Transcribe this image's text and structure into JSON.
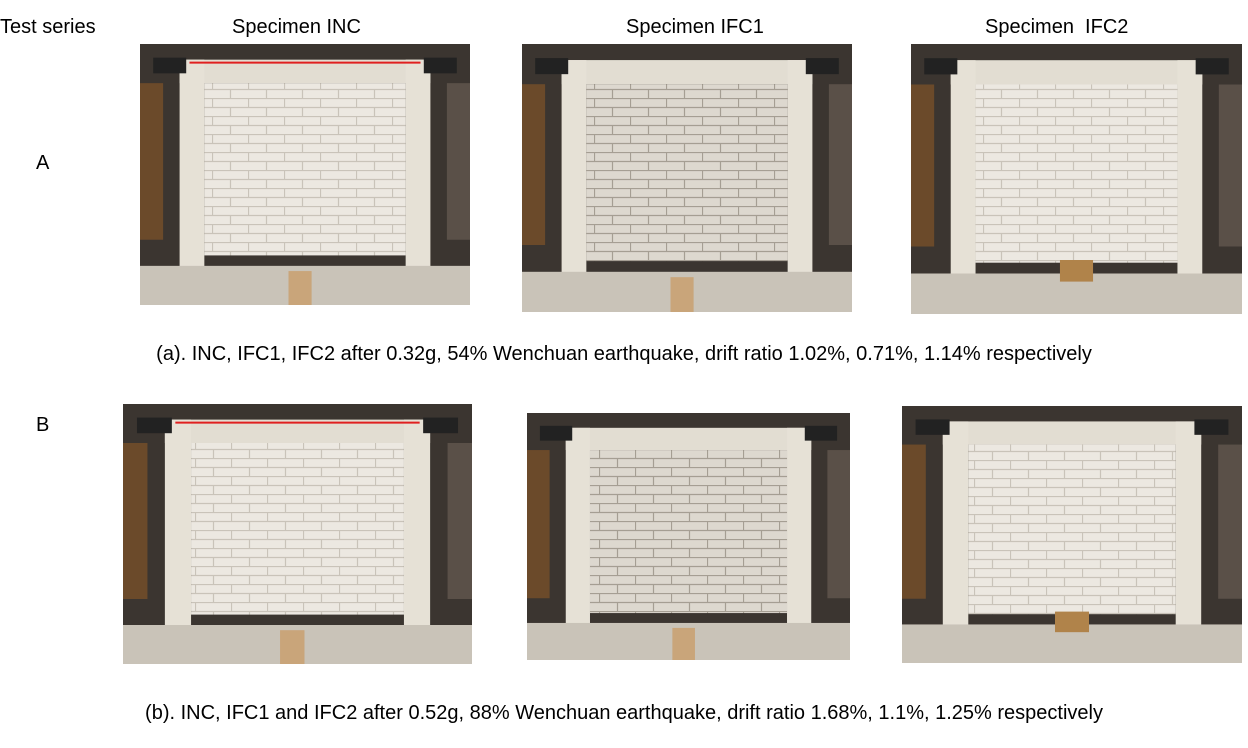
{
  "header": {
    "test_series": "Test series",
    "columns": [
      "Specimen INC",
      "Specimen IFC1",
      "Specimen  IFC2"
    ]
  },
  "rows": [
    {
      "label": "A",
      "caption": "(a). INC, IFC1, IFC2 after 0.32g, 54% Wenchuan earthquake, drift ratio 1.02%, 0.71%, 1.14% respectively"
    },
    {
      "label": "B",
      "caption": "(b). INC, IFC1 and IFC2 after 0.52g, 88% Wenchuan earthquake, drift ratio 1.68%, 1.1%, 1.25% respectively"
    }
  ]
}
